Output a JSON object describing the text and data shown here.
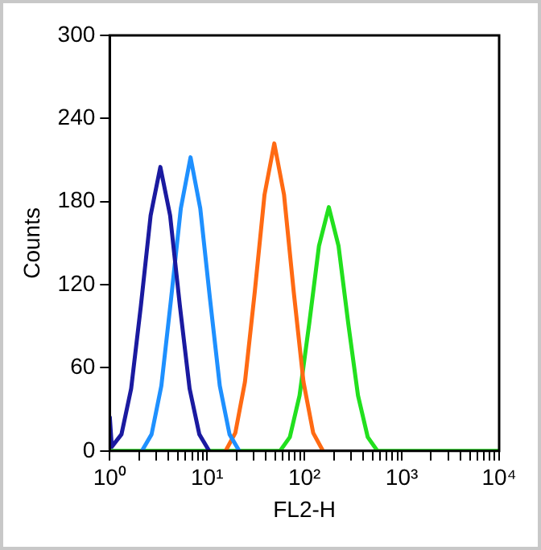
{
  "chart_data": {
    "type": "line",
    "xlabel": "FL2-H",
    "ylabel": "Counts",
    "log": "x",
    "marker": "none",
    "line_style": "solid",
    "grid": false,
    "legend": false,
    "xlim": [
      1,
      10000
    ],
    "ylim": [
      0,
      300
    ],
    "yticks": [
      0,
      60,
      120,
      180,
      240,
      300
    ],
    "xticks": [
      {
        "value": 1,
        "label": "10⁰"
      },
      {
        "value": 2,
        "label": null
      },
      {
        "value": 3,
        "label": null
      },
      {
        "value": 4,
        "label": null
      },
      {
        "value": 5,
        "label": null
      },
      {
        "value": 6,
        "label": null
      },
      {
        "value": 7,
        "label": null
      },
      {
        "value": 8,
        "label": null
      },
      {
        "value": 9,
        "label": null
      },
      {
        "value": 10,
        "label": "10¹"
      },
      {
        "value": 20,
        "label": null
      },
      {
        "value": 30,
        "label": null
      },
      {
        "value": 40,
        "label": null
      },
      {
        "value": 50,
        "label": null
      },
      {
        "value": 60,
        "label": null
      },
      {
        "value": 70,
        "label": null
      },
      {
        "value": 80,
        "label": null
      },
      {
        "value": 90,
        "label": null
      },
      {
        "value": 100,
        "label": "10²"
      },
      {
        "value": 200,
        "label": null
      },
      {
        "value": 300,
        "label": null
      },
      {
        "value": 400,
        "label": null
      },
      {
        "value": 500,
        "label": null
      },
      {
        "value": 600,
        "label": null
      },
      {
        "value": 700,
        "label": null
      },
      {
        "value": 800,
        "label": null
      },
      {
        "value": 900,
        "label": null
      },
      {
        "value": 1000,
        "label": "10³"
      },
      {
        "value": 2000,
        "label": null
      },
      {
        "value": 3000,
        "label": null
      },
      {
        "value": 4000,
        "label": null
      },
      {
        "value": 5000,
        "label": null
      },
      {
        "value": 6000,
        "label": null
      },
      {
        "value": 7000,
        "label": null
      },
      {
        "value": 8000,
        "label": null
      },
      {
        "value": 9000,
        "label": null
      },
      {
        "value": 10000,
        "label": "10⁴"
      }
    ],
    "series": [
      {
        "color": "#1a1aa0",
        "x": [
          1,
          1.05,
          1.32,
          1.66,
          2.09,
          2.63,
          3.31,
          4.17,
          5.25,
          6.61,
          8.32,
          10.5
        ],
        "values": [
          25,
          3,
          12,
          45,
          105,
          170,
          205,
          170,
          105,
          45,
          12,
          0
        ]
      },
      {
        "color": "#1e90ff",
        "x": [
          2.14,
          2.69,
          3.39,
          4.27,
          5.37,
          6.76,
          8.51,
          10.7,
          13.5,
          17,
          21.4
        ],
        "values": [
          0,
          12,
          47,
          110,
          175,
          212,
          175,
          110,
          47,
          12,
          0
        ]
      },
      {
        "color": "#ff6a13",
        "x": [
          15.5,
          19.5,
          24.5,
          30.9,
          38.9,
          49,
          61.7,
          77.6,
          97.7,
          123,
          155
        ],
        "values": [
          0,
          13,
          50,
          115,
          185,
          222,
          185,
          115,
          50,
          13,
          0
        ]
      },
      {
        "color": "#22e01e",
        "x": [
          1,
          56.2,
          70.8,
          89.1,
          112,
          141,
          178,
          224,
          282,
          355,
          447,
          562,
          10000
        ],
        "values": [
          0,
          0,
          10,
          40,
          92,
          148,
          176,
          148,
          92,
          40,
          10,
          0,
          0
        ]
      }
    ]
  }
}
